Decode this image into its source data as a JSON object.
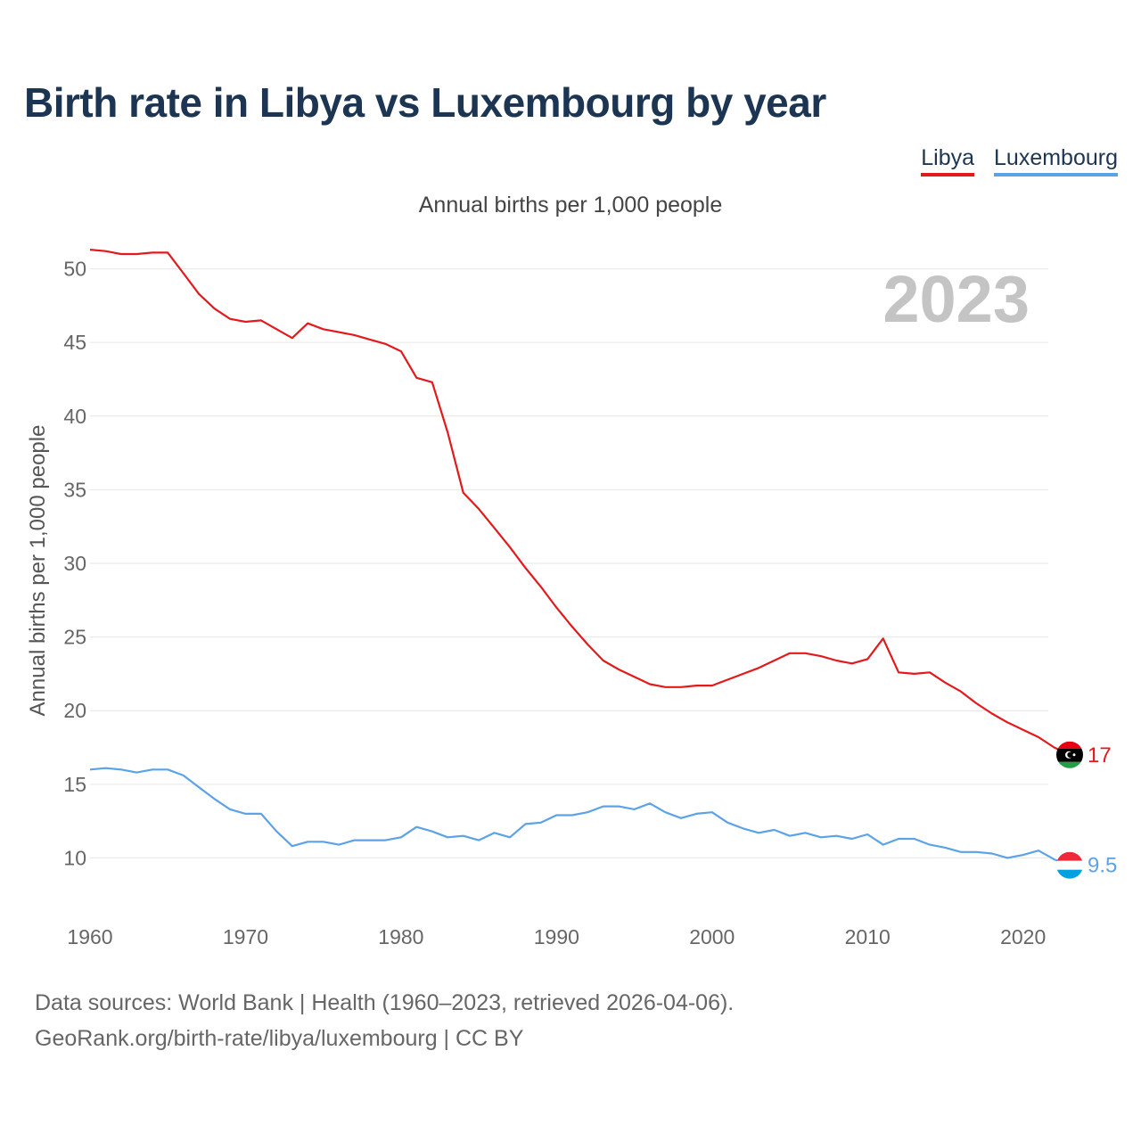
{
  "title": "Birth rate in Libya vs Luxembourg by year",
  "subtitle": "Annual births per 1,000 people",
  "legend": [
    {
      "label": "Libya",
      "color": "#e31a1c"
    },
    {
      "label": "Luxembourg",
      "color": "#5ba3e6"
    }
  ],
  "year_label": "2023",
  "footer": {
    "line1": "Data sources: World Bank | Health (1960–2023, retrieved 2026-04-06).",
    "line2": "GeoRank.org/birth-rate/libya/luxembourg | CC BY"
  },
  "chart_data": {
    "type": "line",
    "title": "Birth rate in Libya vs Luxembourg by year",
    "ylabel": "Annual births per 1,000 people",
    "xlabel": "",
    "xlim": [
      1960,
      2023
    ],
    "ylim": [
      7,
      53
    ],
    "x_ticks": [
      1960,
      1970,
      1980,
      1990,
      2000,
      2010,
      2020
    ],
    "y_ticks": [
      10,
      15,
      20,
      25,
      30,
      35,
      40,
      45,
      50
    ],
    "grid": true,
    "x": [
      1960,
      1961,
      1962,
      1963,
      1964,
      1965,
      1966,
      1967,
      1968,
      1969,
      1970,
      1971,
      1972,
      1973,
      1974,
      1975,
      1976,
      1977,
      1978,
      1979,
      1980,
      1981,
      1982,
      1983,
      1984,
      1985,
      1986,
      1987,
      1988,
      1989,
      1990,
      1991,
      1992,
      1993,
      1994,
      1995,
      1996,
      1997,
      1998,
      1999,
      2000,
      2001,
      2002,
      2003,
      2004,
      2005,
      2006,
      2007,
      2008,
      2009,
      2010,
      2011,
      2012,
      2013,
      2014,
      2015,
      2016,
      2017,
      2018,
      2019,
      2020,
      2021,
      2022,
      2023
    ],
    "series": [
      {
        "name": "Libya",
        "color": "#e31a1c",
        "end_label": "17",
        "values": [
          51.3,
          51.2,
          51.0,
          51.0,
          51.1,
          51.1,
          49.7,
          48.3,
          47.3,
          46.6,
          46.4,
          46.5,
          45.9,
          45.3,
          46.3,
          45.9,
          45.7,
          45.5,
          45.2,
          44.9,
          44.4,
          42.6,
          42.3,
          38.9,
          34.8,
          33.7,
          32.4,
          31.1,
          29.7,
          28.4,
          27.0,
          25.7,
          24.5,
          23.4,
          22.8,
          22.3,
          21.8,
          21.6,
          21.6,
          21.7,
          21.7,
          22.1,
          22.5,
          22.9,
          23.4,
          23.9,
          23.9,
          23.7,
          23.4,
          23.2,
          23.5,
          24.9,
          22.6,
          22.5,
          22.6,
          21.9,
          21.3,
          20.5,
          19.8,
          19.2,
          18.7,
          18.2,
          17.5,
          17.0
        ]
      },
      {
        "name": "Luxembourg",
        "color": "#5ba3e6",
        "end_label": "9.5",
        "values": [
          16.0,
          16.1,
          16.0,
          15.8,
          16.0,
          16.0,
          15.6,
          14.8,
          14.0,
          13.3,
          13.0,
          13.0,
          11.8,
          10.8,
          11.1,
          11.1,
          10.9,
          11.2,
          11.2,
          11.2,
          11.4,
          12.1,
          11.8,
          11.4,
          11.5,
          11.2,
          11.7,
          11.4,
          12.3,
          12.4,
          12.9,
          12.9,
          13.1,
          13.5,
          13.5,
          13.3,
          13.7,
          13.1,
          12.7,
          13.0,
          13.1,
          12.4,
          12.0,
          11.7,
          11.9,
          11.5,
          11.7,
          11.4,
          11.5,
          11.3,
          11.6,
          10.9,
          11.3,
          11.3,
          10.9,
          10.7,
          10.4,
          10.4,
          10.3,
          10.0,
          10.2,
          10.5,
          9.9,
          9.5
        ]
      }
    ]
  }
}
